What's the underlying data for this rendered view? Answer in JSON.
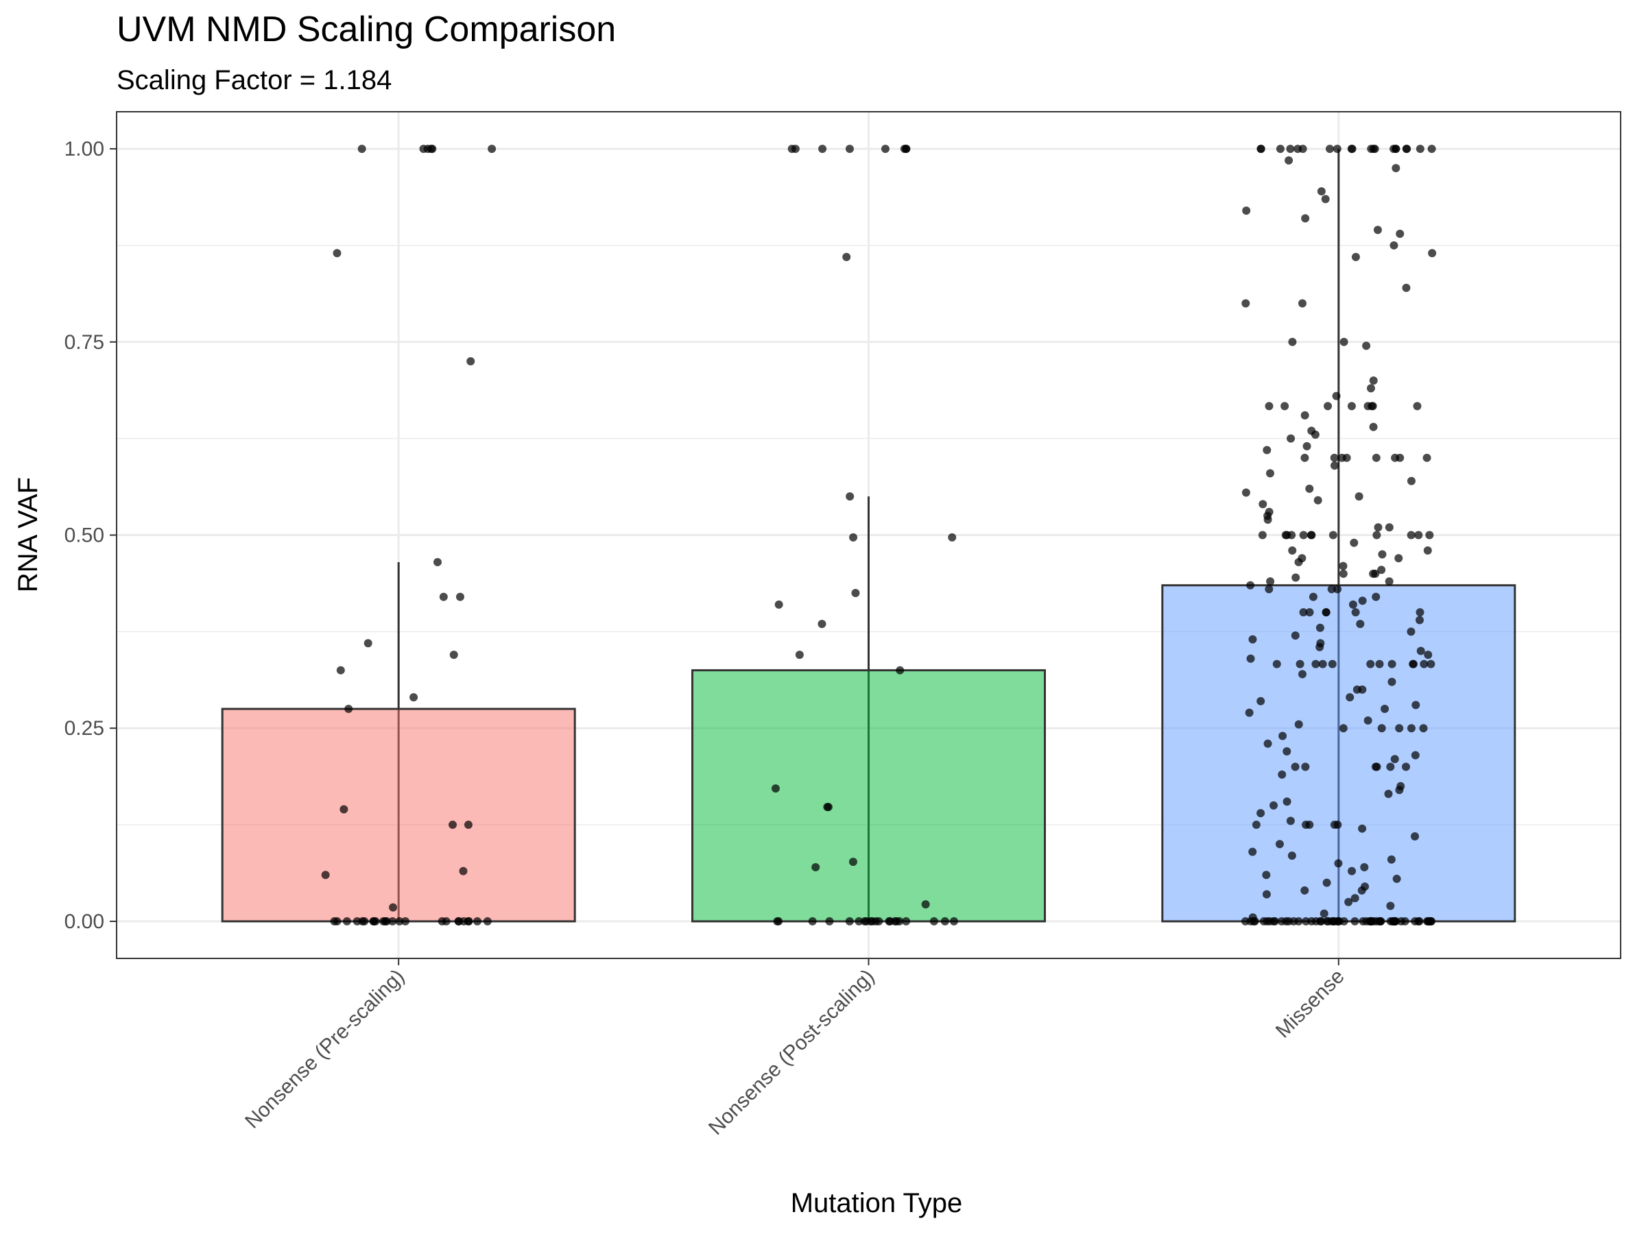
{
  "chart_data": {
    "type": "bar",
    "title": "UVM NMD Scaling Comparison",
    "subtitle": "Scaling Factor = 1.184",
    "xlabel": "Mutation Type",
    "ylabel": "RNA VAF",
    "ylim": [
      -0.048,
      1.048
    ],
    "yticks": [
      "0.00",
      "0.25",
      "0.50",
      "0.75",
      "1.00"
    ],
    "grid": true,
    "legend": "none",
    "categories": [
      "Nonsense (Pre-scaling)",
      "Nonsense (Post-scaling)",
      "Missense"
    ],
    "colors": [
      "#f8766d",
      "#00ba38",
      "#619cff"
    ],
    "series": [
      {
        "values": [
          0.275,
          0.325,
          0.435
        ],
        "error_upper": [
          0.465,
          0.55,
          1.0
        ],
        "points": [
          [
            1.0,
            1.0,
            1.0,
            1.0,
            1.0,
            1.0,
            0.865,
            0.725,
            0.465,
            0.42,
            0.42,
            0.36,
            0.345,
            0.325,
            0.29,
            0.275,
            0.145,
            0.125,
            0.125,
            0.065,
            0.06,
            0.018,
            0,
            0,
            0,
            0,
            0,
            0,
            0,
            0,
            0,
            0,
            0,
            0,
            0,
            0,
            0,
            0,
            0,
            0,
            0,
            0,
            0,
            0,
            0,
            0
          ],
          [
            1.0,
            1.0,
            1.0,
            1.0,
            1.0,
            1.0,
            1.0,
            1.0,
            0.86,
            0.55,
            0.497,
            0.497,
            0.425,
            0.41,
            0.385,
            0.345,
            0.325,
            0.172,
            0.148,
            0.148,
            0.077,
            0.07,
            0.022,
            0,
            0,
            0,
            0,
            0,
            0,
            0,
            0,
            0,
            0,
            0,
            0,
            0,
            0,
            0,
            0,
            0,
            0,
            0,
            0,
            0
          ],
          [
            1.0,
            1.0,
            1.0,
            1.0,
            1.0,
            1.0,
            1.0,
            1.0,
            1.0,
            1.0,
            1.0,
            1.0,
            1.0,
            1.0,
            1.0,
            1.0,
            1.0,
            1.0,
            1.0,
            1.0,
            0.985,
            0.975,
            0.945,
            0.935,
            0.92,
            0.91,
            0.895,
            0.89,
            0.875,
            0.865,
            0.86,
            0.82,
            0.8,
            0.8,
            0.75,
            0.75,
            0.745,
            0.7,
            0.69,
            0.68,
            0.667,
            0.667,
            0.667,
            0.667,
            0.667,
            0.667,
            0.667,
            0.667,
            0.655,
            0.64,
            0.635,
            0.63,
            0.625,
            0.615,
            0.61,
            0.6,
            0.6,
            0.6,
            0.6,
            0.6,
            0.6,
            0.6,
            0.6,
            0.59,
            0.58,
            0.57,
            0.56,
            0.555,
            0.55,
            0.545,
            0.54,
            0.53,
            0.525,
            0.52,
            0.51,
            0.51,
            0.5,
            0.5,
            0.5,
            0.5,
            0.5,
            0.5,
            0.5,
            0.5,
            0.5,
            0.5,
            0.5,
            0.5,
            0.49,
            0.48,
            0.48,
            0.475,
            0.47,
            0.47,
            0.465,
            0.46,
            0.455,
            0.45,
            0.45,
            0.45,
            0.445,
            0.44,
            0.44,
            0.435,
            0.43,
            0.43,
            0.43,
            0.42,
            0.42,
            0.415,
            0.41,
            0.4,
            0.4,
            0.4,
            0.4,
            0.4,
            0.4,
            0.39,
            0.385,
            0.38,
            0.375,
            0.37,
            0.365,
            0.36,
            0.355,
            0.35,
            0.345,
            0.34,
            0.333,
            0.333,
            0.333,
            0.333,
            0.333,
            0.333,
            0.333,
            0.333,
            0.333,
            0.333,
            0.333,
            0.333,
            0.32,
            0.31,
            0.3,
            0.3,
            0.29,
            0.285,
            0.28,
            0.275,
            0.27,
            0.26,
            0.255,
            0.25,
            0.25,
            0.25,
            0.25,
            0.25,
            0.24,
            0.23,
            0.22,
            0.215,
            0.21,
            0.2,
            0.2,
            0.2,
            0.2,
            0.2,
            0.2,
            0.19,
            0.175,
            0.17,
            0.165,
            0.155,
            0.15,
            0.14,
            0.13,
            0.125,
            0.125,
            0.125,
            0.125,
            0.125,
            0.12,
            0.11,
            0.1,
            0.09,
            0.085,
            0.08,
            0.075,
            0.07,
            0.065,
            0.06,
            0.055,
            0.05,
            0.045,
            0.04,
            0.04,
            0.035,
            0.03,
            0.025,
            0.02,
            0.01,
            0.005,
            0,
            0,
            0,
            0,
            0,
            0,
            0,
            0,
            0,
            0,
            0,
            0,
            0,
            0,
            0,
            0,
            0,
            0,
            0,
            0,
            0,
            0,
            0,
            0,
            0,
            0,
            0,
            0,
            0,
            0,
            0,
            0,
            0,
            0,
            0,
            0,
            0,
            0,
            0,
            0,
            0,
            0,
            0,
            0,
            0,
            0,
            0,
            0,
            0,
            0,
            0,
            0,
            0,
            0,
            0,
            0,
            0,
            0,
            0,
            0
          ]
        ]
      }
    ]
  }
}
